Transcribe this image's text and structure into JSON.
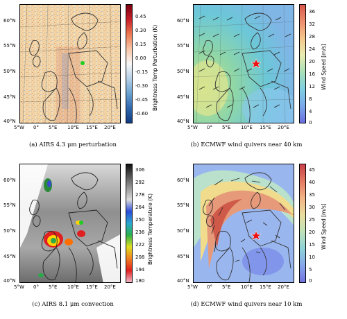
{
  "panels": [
    {
      "id": "a",
      "caption": "(a) AIRS 4.3 μm perturbation",
      "colorbar_label": "Brightness Temp Perturbation (K)",
      "colorbar_ticks": [
        "0.45",
        "0.30",
        "0.15",
        "0.00",
        "-0.15",
        "-0.30",
        "-0.45",
        "-0.60"
      ],
      "colormap": "red-white-blue diverging",
      "lat_ticks": [
        "60°N",
        "55°N",
        "50°N",
        "45°N",
        "40°N"
      ],
      "lon_ticks": [
        "5°W",
        "0°",
        "5°E",
        "10°E",
        "15°E",
        "20°E"
      ]
    },
    {
      "id": "b",
      "caption": "(b) ECMWF wind quivers near 40 km",
      "colorbar_label": "Wind Speed [m/s]",
      "colorbar_ticks": [
        "36",
        "32",
        "28",
        "24",
        "20",
        "16",
        "12",
        "8",
        "4",
        "0"
      ],
      "colormap": "blue-yellow-red",
      "lat_ticks": [
        "60°N",
        "55°N",
        "50°N",
        "45°N",
        "40°N"
      ],
      "lon_ticks": [
        "5°W",
        "0°",
        "5°E",
        "10°E",
        "15°E",
        "20°E"
      ]
    },
    {
      "id": "c",
      "caption": "(c) AIRS 8.1 μm convection",
      "colorbar_label": "Brightness Temperature (K)",
      "colorbar_ticks": [
        "306",
        "292",
        "278",
        "264",
        "250",
        "236",
        "222",
        "208",
        "194",
        "180"
      ],
      "colormap": "grey-to-rainbow",
      "lat_ticks": [
        "60°N",
        "55°N",
        "50°N",
        "45°N",
        "40°N"
      ],
      "lon_ticks": [
        "5°W",
        "0°",
        "5°E",
        "10°E",
        "15°E",
        "20°E"
      ]
    },
    {
      "id": "d",
      "caption": "(d) ECMWF wind quivers near 10 km",
      "colorbar_label": "Wind Speed [m/s]",
      "colorbar_ticks": [
        "45",
        "40",
        "35",
        "30",
        "25",
        "20",
        "15",
        "10",
        "5",
        "0"
      ],
      "colormap": "blue-yellow-red",
      "lat_ticks": [
        "60°N",
        "55°N",
        "50°N",
        "45°N",
        "40°N"
      ],
      "lon_ticks": [
        "5°W",
        "0°",
        "5°E",
        "10°E",
        "15°E",
        "20°E"
      ]
    }
  ],
  "colors": {
    "marker_green": "#22cc22",
    "marker_red_star": "#ee1111",
    "coastline": "#333333"
  }
}
